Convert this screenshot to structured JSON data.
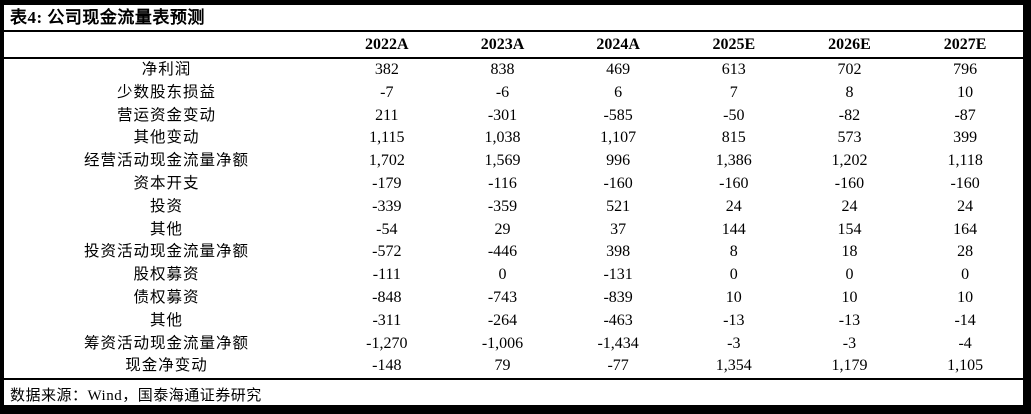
{
  "colors": {
    "border": "#000000",
    "background": "#ffffff",
    "text": "#000000"
  },
  "table": {
    "title": "表4: 公司现金流量表预测",
    "columns": [
      "2022A",
      "2023A",
      "2024A",
      "2025E",
      "2026E",
      "2027E"
    ],
    "rows": [
      {
        "label": "净利润",
        "values": [
          "382",
          "838",
          "469",
          "613",
          "702",
          "796"
        ]
      },
      {
        "label": "少数股东损益",
        "values": [
          "-7",
          "-6",
          "6",
          "7",
          "8",
          "10"
        ]
      },
      {
        "label": "营运资金变动",
        "values": [
          "211",
          "-301",
          "-585",
          "-50",
          "-82",
          "-87"
        ]
      },
      {
        "label": "其他变动",
        "values": [
          "1,115",
          "1,038",
          "1,107",
          "815",
          "573",
          "399"
        ]
      },
      {
        "label": "经营活动现金流量净额",
        "values": [
          "1,702",
          "1,569",
          "996",
          "1,386",
          "1,202",
          "1,118"
        ]
      },
      {
        "label": "资本开支",
        "values": [
          "-179",
          "-116",
          "-160",
          "-160",
          "-160",
          "-160"
        ]
      },
      {
        "label": "投资",
        "values": [
          "-339",
          "-359",
          "521",
          "24",
          "24",
          "24"
        ]
      },
      {
        "label": "其他",
        "values": [
          "-54",
          "29",
          "37",
          "144",
          "154",
          "164"
        ]
      },
      {
        "label": "投资活动现金流量净额",
        "values": [
          "-572",
          "-446",
          "398",
          "8",
          "18",
          "28"
        ]
      },
      {
        "label": "股权募资",
        "values": [
          "-111",
          "0",
          "-131",
          "0",
          "0",
          "0"
        ]
      },
      {
        "label": "债权募资",
        "values": [
          "-848",
          "-743",
          "-839",
          "10",
          "10",
          "10"
        ]
      },
      {
        "label": "其他",
        "values": [
          "-311",
          "-264",
          "-463",
          "-13",
          "-13",
          "-14"
        ]
      },
      {
        "label": "筹资活动现金流量净额",
        "values": [
          "-1,270",
          "-1,006",
          "-1,434",
          "-3",
          "-3",
          "-4"
        ]
      },
      {
        "label": "现金净变动",
        "values": [
          "-148",
          "79",
          "-77",
          "1,354",
          "1,179",
          "1,105"
        ]
      }
    ],
    "source": "数据来源：Wind，国泰海通证券研究"
  }
}
